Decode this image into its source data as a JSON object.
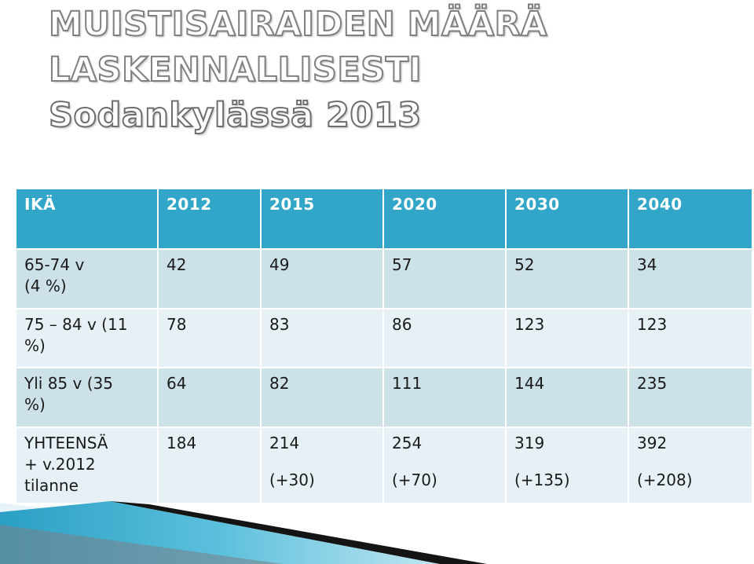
{
  "title": {
    "line1": "MUISTISAIRAIDEN MÄÄRÄ",
    "line2": "LASKENNALLISESTI",
    "line3": "Sodankylässä 2013"
  },
  "table": {
    "headers": [
      "IKÄ",
      "2012",
      "2015",
      "2020",
      "2030",
      "2040"
    ],
    "rows": [
      {
        "label": "65-74 v\n(4 %)",
        "cells": [
          "42",
          "49",
          "57",
          "52",
          "34"
        ]
      },
      {
        "label": "75 – 84 v (11\n%)",
        "cells": [
          "78",
          "83",
          "86",
          "123",
          "123"
        ]
      },
      {
        "label": "Yli 85 v (35\n%)",
        "cells": [
          "64",
          "82",
          "111",
          "144",
          "235"
        ]
      }
    ],
    "total": {
      "label": "YHTEENSÄ\n+ v.2012\ntilanne",
      "cells": [
        "184",
        "214",
        "254",
        "319",
        "392"
      ],
      "changes": [
        "",
        "(+30)",
        "(+70)",
        "(+135)",
        "(+208)"
      ]
    }
  },
  "colors": {
    "header_bg": "#31a6c8",
    "row_dark": "#cde1e8",
    "row_light": "#e7f1f5",
    "accent_decor": "#31a6c8"
  }
}
